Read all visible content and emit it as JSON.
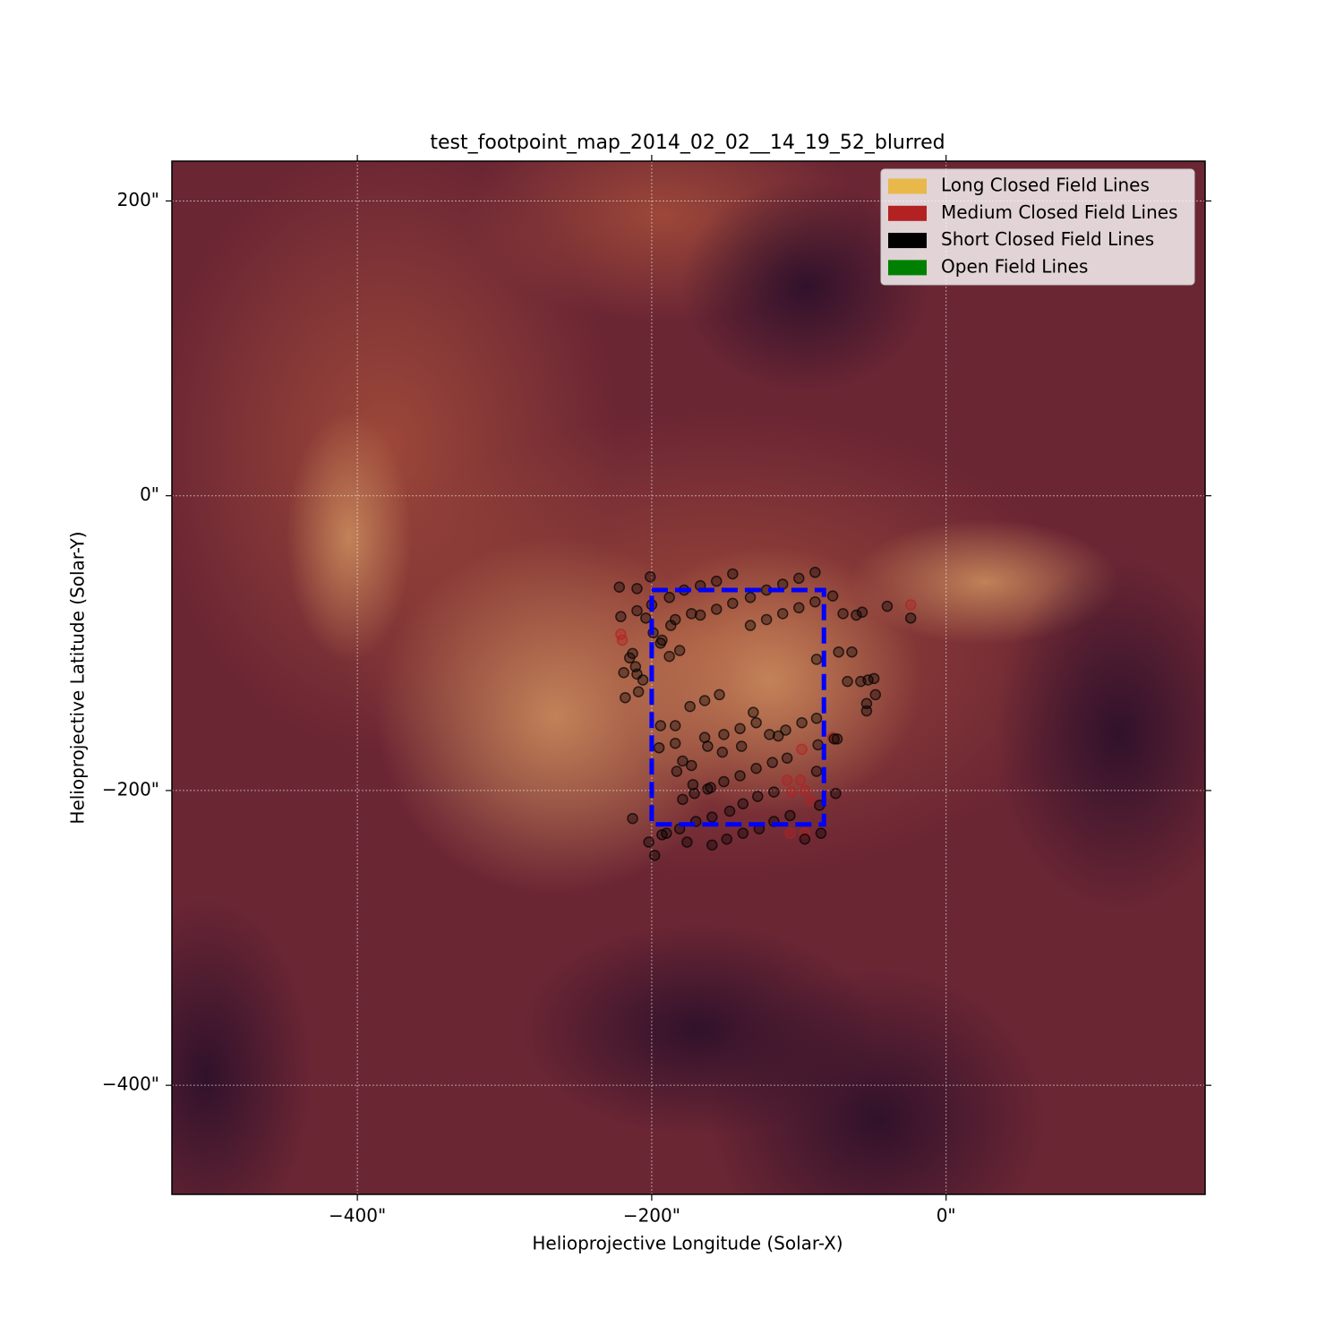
{
  "chart_data": {
    "type": "scatter",
    "title": "test_footpoint_map_2014_02_02__14_19_52_blurred",
    "x_label": "Helioprojective Longitude (Solar-X)",
    "y_label": "Helioprojective Latitude (Solar-Y)",
    "xlim": [
      -526,
      176
    ],
    "ylim": [
      -474,
      227
    ],
    "xticks": [
      {
        "value": -400,
        "label": "−400\""
      },
      {
        "value": -200,
        "label": "−200\""
      },
      {
        "value": 0,
        "label": "0\""
      }
    ],
    "yticks": [
      {
        "value": 200,
        "label": "200\""
      },
      {
        "value": 0,
        "label": "0\""
      },
      {
        "value": -200,
        "label": "−200\""
      },
      {
        "value": -400,
        "label": "−400\""
      }
    ],
    "grid": true,
    "legend": "upper right",
    "rectangle": {
      "x": [
        -200,
        -83
      ],
      "y": [
        -223,
        -64
      ],
      "color": "#0000ff"
    },
    "series": [
      {
        "name": "Long Closed Field Lines",
        "color": "#e8b84a",
        "x": [],
        "y": []
      },
      {
        "name": "Medium Closed Field Lines",
        "color": "#b22222",
        "x": [
          -221,
          -220,
          -24,
          -98,
          -108,
          -99,
          -96,
          -105,
          -92,
          -106,
          -96,
          -77
        ],
        "y": [
          -94,
          -98,
          -74,
          -172,
          -193,
          -193,
          -200,
          -201,
          -207,
          -229,
          -229,
          -164
        ]
      },
      {
        "name": "Short Closed Field Lines",
        "color": "#000000",
        "x": [
          -222,
          -210,
          -201,
          -188,
          -178,
          -167,
          -156,
          -145,
          -133,
          -122,
          -111,
          -100,
          -89,
          -77,
          -221,
          -210,
          -204,
          -200,
          -187,
          -184,
          -173,
          -167,
          -156,
          -145,
          -133,
          -122,
          -111,
          -100,
          -89,
          -70,
          -61,
          -57,
          -40,
          -24,
          -215,
          -213,
          -211,
          -219,
          -210,
          -206,
          -199,
          -194,
          -188,
          -181,
          -193,
          -88,
          -73,
          -64,
          -67,
          -58,
          -53,
          -49,
          -48,
          -54,
          -54,
          -218,
          -209,
          -194,
          -184,
          -174,
          -164,
          -154,
          -131,
          -88,
          -76,
          -74,
          -195,
          -184,
          -179,
          -173,
          -162,
          -151,
          -140,
          -129,
          -120,
          -109,
          -98,
          -87,
          -183,
          -172,
          -162,
          -151,
          -140,
          -129,
          -118,
          -108,
          -88,
          -179,
          -171,
          -160,
          -147,
          -138,
          -128,
          -117,
          -75,
          -86,
          -213,
          -193,
          -190,
          -181,
          -176,
          -170,
          -159,
          -149,
          -138,
          -127,
          -117,
          -106,
          -96,
          -85,
          -202,
          -198,
          -159,
          -164,
          -152,
          -139,
          -114
        ],
        "y": [
          -62,
          -63,
          -55,
          -69,
          -64,
          -61,
          -58,
          -53,
          -69,
          -64,
          -60,
          -56,
          -52,
          -68,
          -82,
          -78,
          -83,
          -74,
          -88,
          -84,
          -80,
          -81,
          -77,
          -73,
          -88,
          -84,
          -80,
          -76,
          -72,
          -80,
          -81,
          -79,
          -75,
          -83,
          -110,
          -107,
          -116,
          -120,
          -121,
          -125,
          -93,
          -100,
          -109,
          -105,
          -98,
          -111,
          -106,
          -106,
          -126,
          -126,
          -125,
          -124,
          -135,
          -141,
          -146,
          -137,
          -133,
          -156,
          -156,
          -143,
          -139,
          -135,
          -147,
          -151,
          -165,
          -165,
          -171,
          -168,
          -180,
          -183,
          -170,
          -162,
          -158,
          -154,
          -162,
          -159,
          -154,
          -169,
          -187,
          -196,
          -199,
          -194,
          -190,
          -185,
          -181,
          -178,
          -187,
          -206,
          -202,
          -198,
          -214,
          -209,
          -204,
          -201,
          -202,
          -210,
          -219,
          -230,
          -229,
          -226,
          -235,
          -221,
          -218,
          -233,
          -229,
          -226,
          -221,
          -217,
          -233,
          -229,
          -235,
          -244,
          -237,
          -164,
          -174,
          -170,
          -163
        ]
      },
      {
        "name": "Open Field Lines",
        "color": "#008000",
        "x": [],
        "y": []
      }
    ]
  }
}
